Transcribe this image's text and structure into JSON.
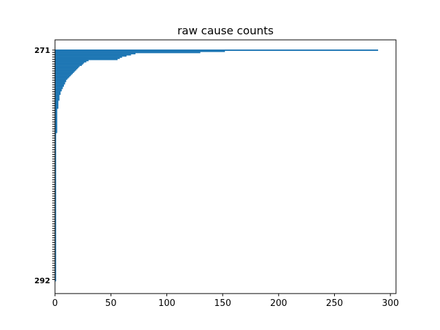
{
  "chart_data": {
    "type": "bar",
    "orientation": "horizontal",
    "title": "raw cause counts",
    "xlabel": "",
    "ylabel": "",
    "xlim": [
      0,
      305
    ],
    "x_ticks": [
      0,
      50,
      100,
      150,
      200,
      250,
      300
    ],
    "y_tick_labels_legible": [
      "271",
      "292"
    ],
    "bar_color": "#1f77b4",
    "grid": false,
    "legend": "none",
    "values": [
      289,
      152,
      130,
      72,
      68,
      64,
      60,
      58,
      56,
      30,
      28,
      26,
      25,
      24,
      22,
      21,
      20,
      19,
      18,
      17,
      16,
      15,
      14,
      13,
      12,
      11,
      10,
      10,
      9,
      9,
      8,
      8,
      7,
      7,
      6,
      6,
      5,
      5,
      5,
      4,
      4,
      4,
      4,
      4,
      3,
      3,
      3,
      3,
      3,
      3,
      3,
      2,
      2,
      2,
      2,
      2,
      2,
      2,
      2,
      2,
      2,
      2,
      2,
      2,
      2,
      2,
      2,
      2,
      2,
      2,
      2,
      2,
      1,
      1,
      1,
      1,
      1,
      1,
      1,
      1,
      1,
      1,
      1,
      1,
      1,
      1,
      1,
      1,
      1,
      1,
      1,
      1,
      1,
      1,
      1,
      1,
      1,
      1,
      1,
      1,
      1,
      1,
      1,
      1,
      1,
      1,
      1,
      1,
      1,
      1,
      1,
      1,
      1,
      1,
      1,
      1,
      1,
      1,
      1,
      1,
      1,
      1,
      1,
      1,
      1,
      1,
      1,
      1,
      1,
      1,
      1,
      1,
      1,
      1,
      1,
      1,
      1,
      1,
      1,
      1,
      1,
      1,
      1,
      1,
      1,
      1,
      1,
      1,
      1,
      1,
      1,
      1,
      1,
      1,
      1,
      1,
      1,
      1,
      1,
      1,
      1,
      1,
      1,
      1,
      1,
      1,
      1,
      1,
      1,
      1,
      1,
      1,
      1,
      1,
      1,
      1,
      1,
      1,
      1,
      1,
      1,
      1,
      1,
      1,
      1,
      1,
      1,
      1,
      1,
      1,
      1,
      1,
      1,
      1,
      1,
      1,
      1,
      1,
      1,
      1
    ]
  }
}
